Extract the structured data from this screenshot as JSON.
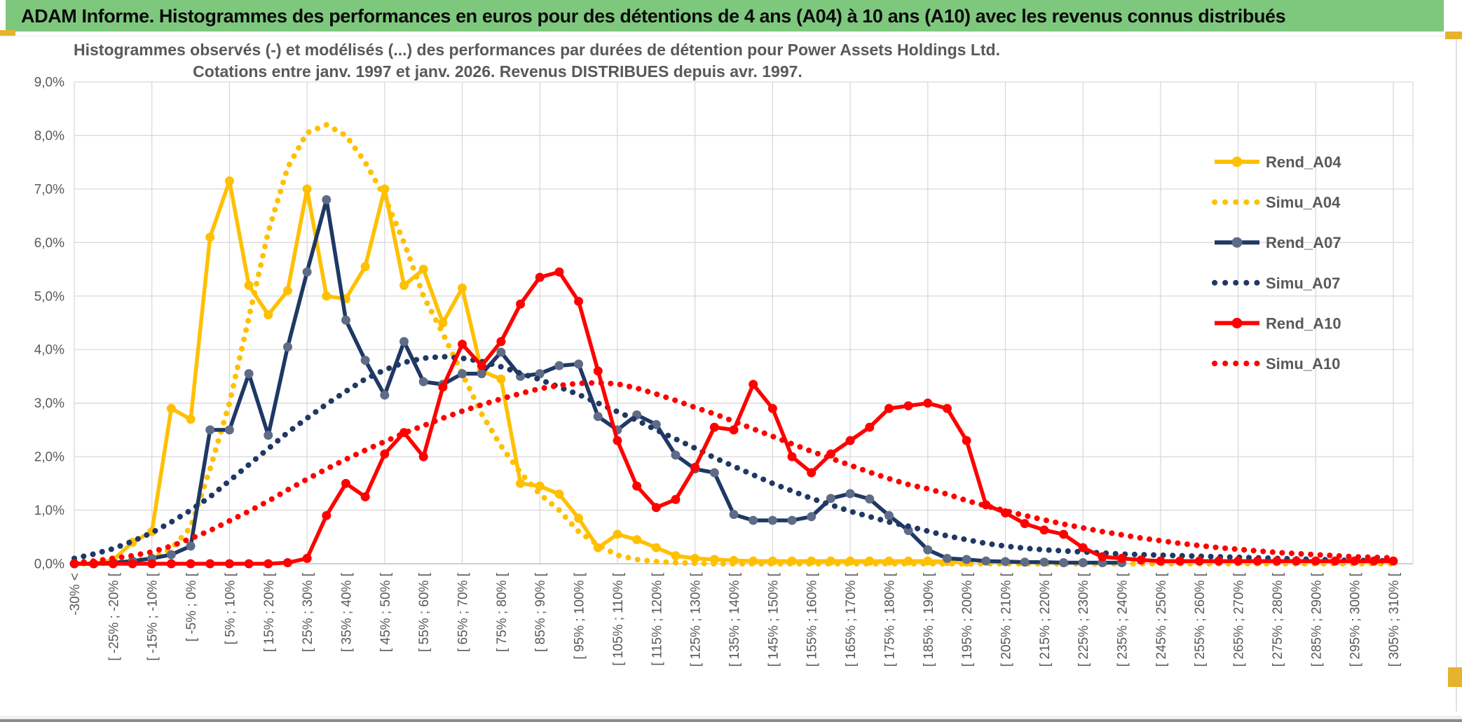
{
  "window": {
    "header_title": "ADAM Informe. Histogrammes des performances en euros pour des détentions de 4 ans (A04) à 10 ans (A10) avec les revenus connus distribués",
    "header_color": "#7EC87E",
    "accent_color": "#E6B32E"
  },
  "chart_data": {
    "type": "line",
    "title_line1": "Histogrammes observés (-) et modélisés (...) des performances par durées de détention pour Power Assets Holdings Ltd.",
    "title_line2": "Cotations entre janv. 1997 et janv. 2026. Revenus DISTRIBUES depuis avr. 1997.",
    "ylim": [
      0,
      9
    ],
    "y_tick_labels": [
      "0,0%",
      "1,0%",
      "2,0%",
      "3,0%",
      "4,0%",
      "5,0%",
      "6,0%",
      "7,0%",
      "8,0%",
      "9,0%"
    ],
    "grid": true,
    "legend_position": "right",
    "n_categories": 69,
    "x_label_every": 2,
    "x_labels": [
      "-30% <",
      "[ -25% ; -20% [",
      "[ -15% ; -10% [",
      "[ -5% ; 0% [",
      "[ 5% ; 10% [",
      "[ 15% ; 20% [",
      "[ 25% ; 30% [",
      "[ 35% ; 40% [",
      "[ 45% ; 50% [",
      "[ 55% ; 60% [",
      "[ 65% ; 70% [",
      "[ 75% ; 80% [",
      "[ 85% ; 90% [",
      "[ 95% ; 100% [",
      "[ 105% ; 110% [",
      "[ 115% ; 120% [",
      "[ 125% ; 130% [",
      "[ 135% ; 140% [",
      "[ 145% ; 150% [",
      "[ 155% ; 160% [",
      "[ 165% ; 170% [",
      "[ 175% ; 180% [",
      "[ 185% ; 190% [",
      "[ 195% ; 200% [",
      "[ 205% ; 210% [",
      "[ 215% ; 220% [",
      "[ 225% ; 230% [",
      "[ 235% ; 240% [",
      "[ 245% ; 250% [",
      "[ 255% ; 260% [",
      "[ 265% ; 270% [",
      "[ 275% ; 280% [",
      "[ 285% ; 290% [",
      "[ 295% ; 300% [",
      "[ 305% ; 310% ["
    ],
    "colors": {
      "gold": "#FFC000",
      "navy": "#1F3864",
      "navy_marker": "#5F6C87",
      "red": "#FF0000",
      "grid": "#D9D9D9",
      "axis": "#BFBFBF",
      "text": "#595959"
    },
    "series": [
      {
        "name": "Rend_A04",
        "color": "#FFC000",
        "style": "solid",
        "marker": true,
        "marker_color": "#FFC000",
        "values": [
          0,
          0,
          0.07,
          0.4,
          0.6,
          2.9,
          2.7,
          6.1,
          7.15,
          5.2,
          4.65,
          5.1,
          7.0,
          5.0,
          4.95,
          5.55,
          7.0,
          5.2,
          5.5,
          4.5,
          5.15,
          3.6,
          3.45,
          1.5,
          1.45,
          1.3,
          0.85,
          0.3,
          0.55,
          0.45,
          0.3,
          0.15,
          0.1,
          0.08,
          0.06,
          0.05,
          0.05,
          0.05,
          0.05,
          0.05,
          0.05,
          0.05,
          0.05,
          0.05,
          0.05,
          0.04,
          0.03,
          null,
          null,
          null,
          null,
          null,
          null,
          null,
          null,
          null,
          null,
          null,
          null,
          null,
          null,
          null,
          null,
          null,
          null,
          null,
          null,
          null,
          null
        ]
      },
      {
        "name": "Simu_A04",
        "color": "#FFC000",
        "style": "dotted",
        "marker": false,
        "values": [
          0,
          0,
          0.02,
          0.05,
          0.1,
          0.28,
          0.68,
          1.77,
          3.0,
          4.6,
          6.2,
          7.4,
          8.05,
          8.2,
          8.0,
          7.5,
          6.85,
          6.0,
          5.0,
          4.3,
          3.55,
          2.8,
          2.2,
          1.7,
          1.3,
          1.0,
          0.6,
          0.35,
          0.16,
          0.08,
          0.04,
          0.02,
          0.01,
          0,
          0,
          0,
          0,
          0,
          0,
          0,
          0,
          0,
          0,
          0,
          0,
          0,
          0,
          0,
          0,
          0,
          0,
          0,
          0,
          0,
          0,
          0,
          0,
          0,
          0,
          0,
          0,
          0,
          0,
          0,
          0,
          0,
          0,
          0,
          0
        ]
      },
      {
        "name": "Rend_A07",
        "color": "#1F3864",
        "style": "solid",
        "marker": true,
        "marker_color": "#5F6C87",
        "values": [
          0,
          0,
          0.02,
          0.05,
          0.1,
          0.17,
          0.33,
          2.5,
          2.5,
          3.55,
          2.4,
          4.05,
          5.45,
          6.8,
          4.55,
          3.8,
          3.15,
          4.15,
          3.4,
          3.35,
          3.55,
          3.55,
          3.95,
          3.5,
          3.55,
          3.7,
          3.73,
          2.75,
          2.5,
          2.78,
          2.6,
          2.03,
          1.77,
          1.7,
          0.92,
          0.81,
          0.81,
          0.81,
          0.88,
          1.22,
          1.31,
          1.21,
          0.9,
          0.62,
          0.26,
          0.1,
          0.08,
          0.05,
          0.04,
          0.03,
          0.03,
          0.02,
          0.02,
          0.02,
          0.02,
          null,
          null,
          null,
          null,
          null,
          null,
          null,
          null,
          null,
          null,
          null,
          null,
          null,
          null
        ]
      },
      {
        "name": "Simu_A07",
        "color": "#1F3864",
        "style": "dotted",
        "marker": false,
        "values": [
          0.1,
          0.18,
          0.28,
          0.42,
          0.58,
          0.78,
          1.0,
          1.25,
          1.55,
          1.85,
          2.15,
          2.45,
          2.72,
          2.98,
          3.22,
          3.45,
          3.62,
          3.76,
          3.84,
          3.87,
          3.84,
          3.78,
          3.68,
          3.56,
          3.44,
          3.3,
          3.16,
          3.0,
          2.84,
          2.68,
          2.5,
          2.33,
          2.16,
          1.98,
          1.82,
          1.66,
          1.5,
          1.36,
          1.22,
          1.1,
          0.98,
          0.88,
          0.78,
          0.7,
          0.61,
          0.52,
          0.45,
          0.38,
          0.33,
          0.29,
          0.26,
          0.24,
          0.22,
          0.2,
          0.18,
          0.17,
          0.16,
          0.15,
          0.14,
          0.13,
          0.12,
          0.11,
          0.1,
          0.09,
          0.08,
          0.07,
          0.06,
          0.06,
          0.05
        ]
      },
      {
        "name": "Rend_A10",
        "color": "#FF0000",
        "style": "solid",
        "marker": true,
        "marker_color": "#FF0000",
        "values": [
          0,
          0,
          0,
          0,
          0,
          0,
          0,
          0,
          0,
          0,
          0,
          0.02,
          0.1,
          0.9,
          1.5,
          1.25,
          2.05,
          2.45,
          2.0,
          3.3,
          4.1,
          3.7,
          4.15,
          4.85,
          5.35,
          5.45,
          4.9,
          3.6,
          2.3,
          1.45,
          1.05,
          1.2,
          1.8,
          2.55,
          2.5,
          3.35,
          2.9,
          2.0,
          1.7,
          2.05,
          2.3,
          2.55,
          2.9,
          2.95,
          3.0,
          2.9,
          2.3,
          1.1,
          0.95,
          0.75,
          0.63,
          0.55,
          0.3,
          0.13,
          0.1,
          0.07,
          0.05,
          0.05,
          0.05,
          0.05,
          0.05,
          0.05,
          0.05,
          0.05,
          0.05,
          0.05,
          0.05,
          0.05,
          0.05
        ]
      },
      {
        "name": "Simu_A10",
        "color": "#FF0000",
        "style": "dotted",
        "marker": false,
        "values": [
          0.02,
          0.05,
          0.1,
          0.15,
          0.22,
          0.33,
          0.47,
          0.62,
          0.8,
          0.98,
          1.17,
          1.38,
          1.58,
          1.77,
          1.95,
          2.12,
          2.28,
          2.44,
          2.58,
          2.72,
          2.85,
          2.97,
          3.08,
          3.18,
          3.27,
          3.33,
          3.37,
          3.38,
          3.36,
          3.28,
          3.17,
          3.05,
          2.92,
          2.8,
          2.66,
          2.52,
          2.38,
          2.24,
          2.1,
          1.97,
          1.84,
          1.71,
          1.59,
          1.48,
          1.4,
          1.3,
          1.18,
          1.08,
          0.99,
          0.9,
          0.82,
          0.74,
          0.67,
          0.6,
          0.54,
          0.48,
          0.43,
          0.38,
          0.34,
          0.3,
          0.27,
          0.24,
          0.21,
          0.19,
          0.17,
          0.15,
          0.13,
          0.12,
          0.11
        ]
      }
    ]
  }
}
